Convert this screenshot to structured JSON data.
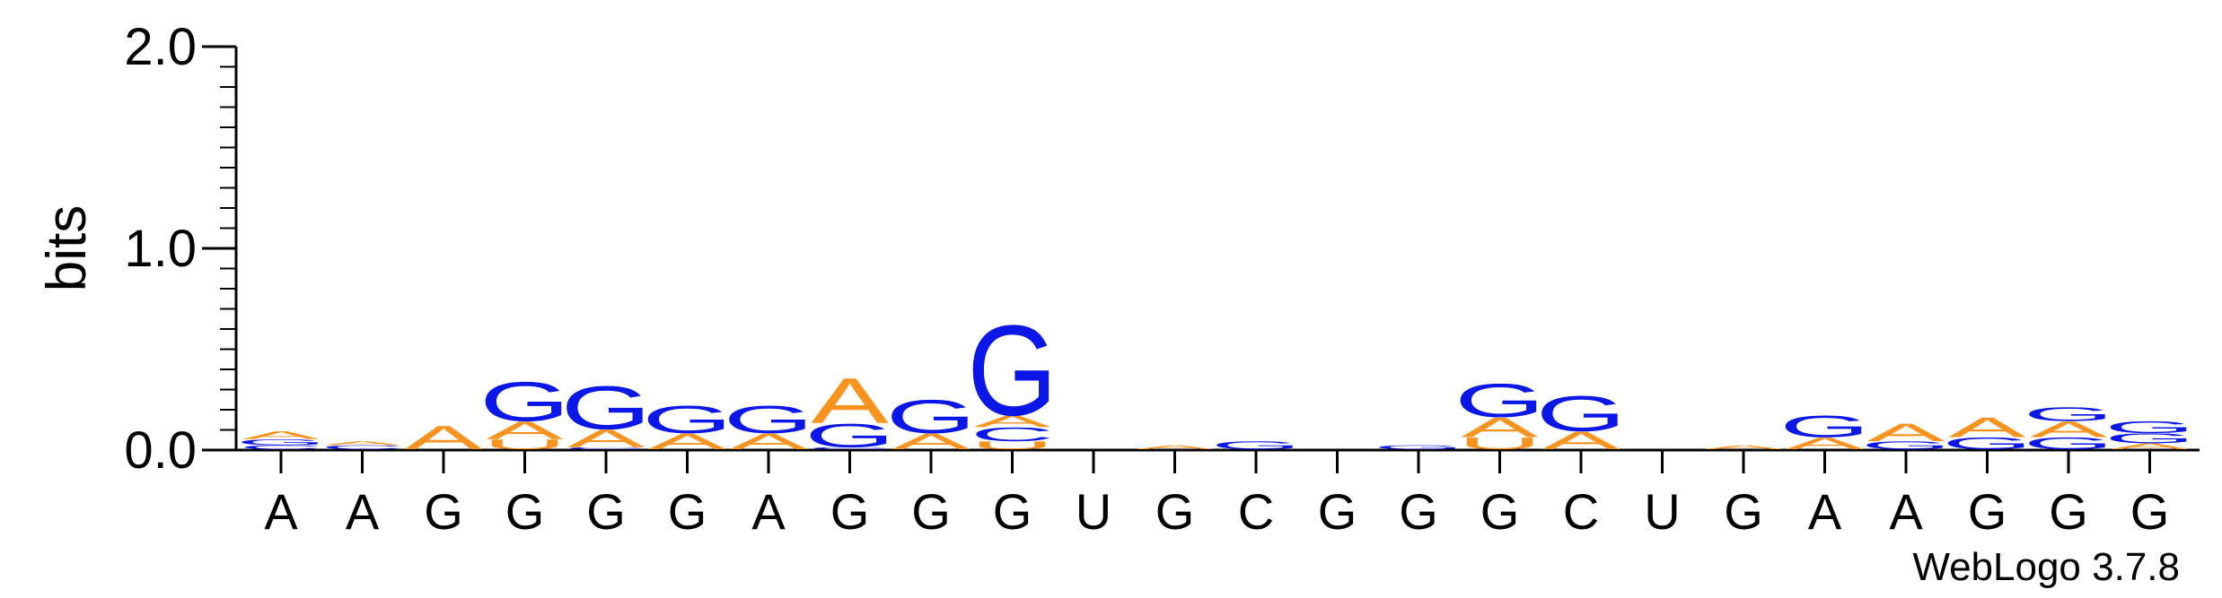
{
  "chart_data": {
    "type": "sequence-logo",
    "ylabel": "bits",
    "ylim": [
      0,
      2.0
    ],
    "yticks": [
      "0.0",
      "1.0",
      "2.0"
    ],
    "categories": [
      "A",
      "A",
      "G",
      "G",
      "G",
      "G",
      "A",
      "G",
      "G",
      "G",
      "U",
      "G",
      "C",
      "G",
      "G",
      "G",
      "C",
      "U",
      "G",
      "A",
      "A",
      "G",
      "G",
      "G"
    ],
    "colors": {
      "A": "#f7931e",
      "G": "#0a17e6",
      "C": "#0a17e6",
      "U": "#f7931e"
    },
    "stacks": [
      [
        {
          "letter": "C",
          "bits": 0.02
        },
        {
          "letter": "G",
          "bits": 0.03
        },
        {
          "letter": "A",
          "bits": 0.04
        }
      ],
      [
        {
          "letter": "C",
          "bits": 0.02
        },
        {
          "letter": "A",
          "bits": 0.02
        }
      ],
      [
        {
          "letter": "A",
          "bits": 0.12
        }
      ],
      [
        {
          "letter": "U",
          "bits": 0.05
        },
        {
          "letter": "A",
          "bits": 0.09
        },
        {
          "letter": "G",
          "bits": 0.2
        }
      ],
      [
        {
          "letter": "C",
          "bits": 0.01
        },
        {
          "letter": "A",
          "bits": 0.09
        },
        {
          "letter": "G",
          "bits": 0.22
        }
      ],
      [
        {
          "letter": "A",
          "bits": 0.08
        },
        {
          "letter": "G",
          "bits": 0.14
        }
      ],
      [
        {
          "letter": "A",
          "bits": 0.08
        },
        {
          "letter": "G",
          "bits": 0.14
        }
      ],
      [
        {
          "letter": "C",
          "bits": 0.01
        },
        {
          "letter": "G",
          "bits": 0.12
        },
        {
          "letter": "A",
          "bits": 0.23
        }
      ],
      [
        {
          "letter": "A",
          "bits": 0.08
        },
        {
          "letter": "G",
          "bits": 0.17
        }
      ],
      [
        {
          "letter": "U",
          "bits": 0.04
        },
        {
          "letter": "C",
          "bits": 0.07
        },
        {
          "letter": "A",
          "bits": 0.06
        },
        {
          "letter": "G",
          "bits": 0.46
        }
      ],
      [],
      [
        {
          "letter": "A",
          "bits": 0.02
        }
      ],
      [
        {
          "letter": "G",
          "bits": 0.04
        }
      ],
      [],
      [
        {
          "letter": "G",
          "bits": 0.02
        }
      ],
      [
        {
          "letter": "U",
          "bits": 0.06
        },
        {
          "letter": "A",
          "bits": 0.1
        },
        {
          "letter": "G",
          "bits": 0.17
        }
      ],
      [
        {
          "letter": "A",
          "bits": 0.09
        },
        {
          "letter": "G",
          "bits": 0.18
        }
      ],
      [],
      [
        {
          "letter": "A",
          "bits": 0.02
        }
      ],
      [
        {
          "letter": "A",
          "bits": 0.06
        },
        {
          "letter": "G",
          "bits": 0.11
        }
      ],
      [
        {
          "letter": "G",
          "bits": 0.04
        },
        {
          "letter": "A",
          "bits": 0.09
        }
      ],
      [
        {
          "letter": "G",
          "bits": 0.06
        },
        {
          "letter": "A",
          "bits": 0.1
        }
      ],
      [
        {
          "letter": "G",
          "bits": 0.06
        },
        {
          "letter": "A",
          "bits": 0.08
        },
        {
          "letter": "G",
          "bits": 0.07
        }
      ],
      [
        {
          "letter": "A",
          "bits": 0.03
        },
        {
          "letter": "G",
          "bits": 0.05
        },
        {
          "letter": "G",
          "bits": 0.06
        }
      ]
    ]
  },
  "footer": {
    "credit": "WebLogo 3.7.8"
  }
}
